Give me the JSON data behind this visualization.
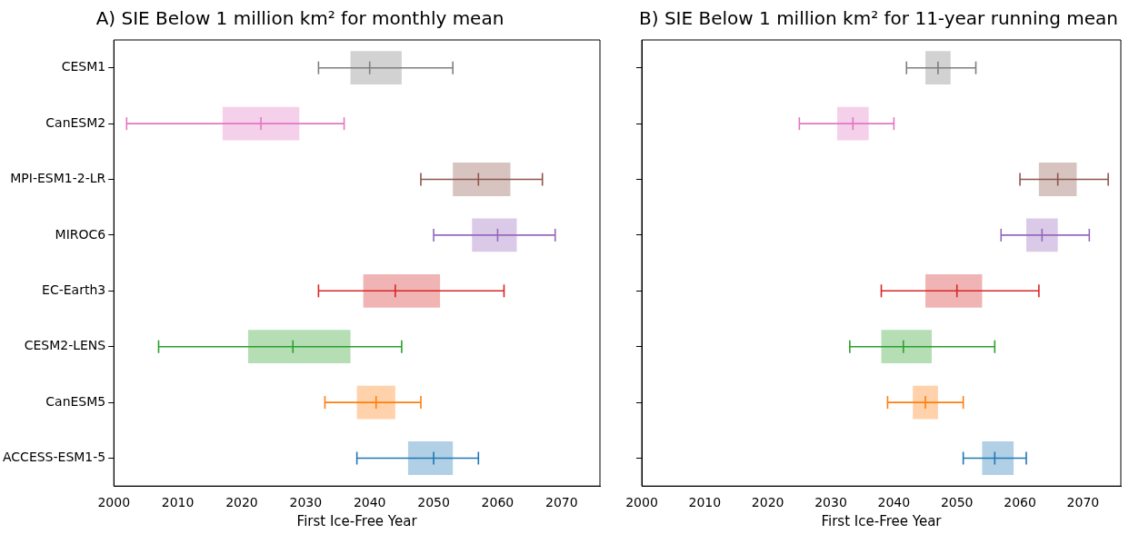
{
  "chart_data": [
    {
      "type": "box",
      "orientation": "horizontal",
      "title": "A) SIE Below 1 million km² for monthly mean",
      "xlabel": "First Ice-Free Year",
      "categories": [
        "CESM1",
        "CanESM2",
        "MPI-ESM1-2-LR",
        "MIROC6",
        "EC-Earth3",
        "CESM2-LENS",
        "CanESM5",
        "ACCESS-ESM1-5"
      ],
      "colors": [
        "#7f7f7f",
        "#e377c2",
        "#8c564b",
        "#9467bd",
        "#d62728",
        "#2ca02c",
        "#ff7f0e",
        "#1f77b4"
      ],
      "boxes": [
        {
          "low": 2032,
          "q1": 2037,
          "median": 2040,
          "q3": 2045,
          "high": 2053
        },
        {
          "low": 2002,
          "q1": 2017,
          "median": 2023,
          "q3": 2029,
          "high": 2036
        },
        {
          "low": 2048,
          "q1": 2053,
          "median": 2057,
          "q3": 2062,
          "high": 2067
        },
        {
          "low": 2050,
          "q1": 2056,
          "median": 2060,
          "q3": 2063,
          "high": 2069
        },
        {
          "low": 2032,
          "q1": 2039,
          "median": 2044,
          "q3": 2051,
          "high": 2061
        },
        {
          "low": 2007,
          "q1": 2021,
          "median": 2028,
          "q3": 2037,
          "high": 2045
        },
        {
          "low": 2033,
          "q1": 2038,
          "median": 2041,
          "q3": 2044,
          "high": 2048
        },
        {
          "low": 2038,
          "q1": 2046,
          "median": 2050,
          "q3": 2053,
          "high": 2057
        }
      ],
      "xlim": [
        2000,
        2076
      ],
      "xticks": [
        2000,
        2010,
        2020,
        2030,
        2040,
        2050,
        2060,
        2070
      ],
      "grid": false,
      "legend": false
    },
    {
      "type": "box",
      "orientation": "horizontal",
      "title": "B) SIE Below 1 million km² for 11-year running mean",
      "xlabel": "First Ice-Free Year",
      "categories": [
        null,
        null,
        null,
        null,
        null,
        null,
        null,
        null
      ],
      "colors": [
        "#7f7f7f",
        "#e377c2",
        "#8c564b",
        "#9467bd",
        "#d62728",
        "#2ca02c",
        "#ff7f0e",
        "#1f77b4"
      ],
      "boxes": [
        {
          "low": 2042,
          "q1": 2045,
          "median": 2047,
          "q3": 2049,
          "high": 2053
        },
        {
          "low": 2025,
          "q1": 2031,
          "median": 2033.5,
          "q3": 2036,
          "high": 2040
        },
        {
          "low": 2060,
          "q1": 2063,
          "median": 2066,
          "q3": 2069,
          "high": 2074
        },
        {
          "low": 2057,
          "q1": 2061,
          "median": 2063.5,
          "q3": 2066,
          "high": 2071
        },
        {
          "low": 2038,
          "q1": 2045,
          "median": 2050,
          "q3": 2054,
          "high": 2063
        },
        {
          "low": 2033,
          "q1": 2038,
          "median": 2041.5,
          "q3": 2046,
          "high": 2056
        },
        {
          "low": 2039,
          "q1": 2043,
          "median": 2045,
          "q3": 2047,
          "high": 2051
        },
        {
          "low": 2051,
          "q1": 2054,
          "median": 2056,
          "q3": 2059,
          "high": 2061
        }
      ],
      "xlim": [
        2000,
        2076
      ],
      "xticks": [
        2000,
        2010,
        2020,
        2030,
        2040,
        2050,
        2060,
        2070
      ],
      "grid": false,
      "legend": false,
      "tick_labels": "x"
    }
  ]
}
